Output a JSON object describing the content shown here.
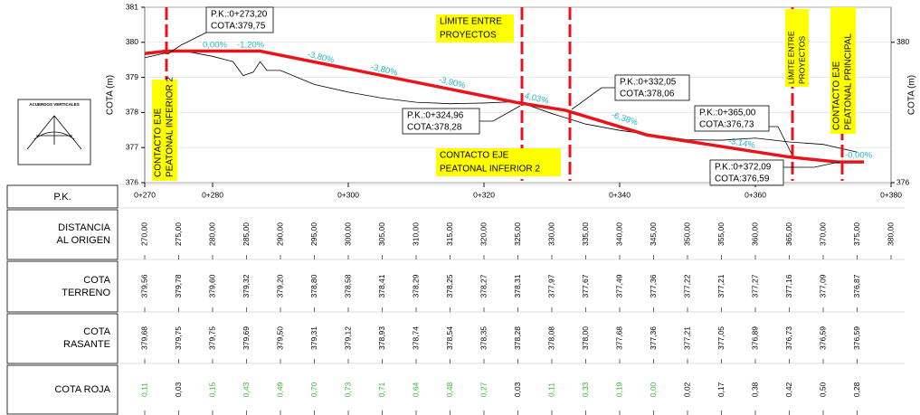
{
  "profile": {
    "y_axis_label": "COTA (m)",
    "ylim": [
      376,
      381
    ],
    "yticks": [
      376,
      377,
      378,
      379,
      380,
      381
    ],
    "right_yticks": [
      380,
      376
    ],
    "xlim": [
      270,
      380
    ],
    "xticks": [
      {
        "value": 270,
        "label": "0+270"
      },
      {
        "value": 280,
        "label": "0+280"
      },
      {
        "value": 300,
        "label": "0+300"
      },
      {
        "value": 320,
        "label": "0+320"
      },
      {
        "value": 340,
        "label": "0+340"
      },
      {
        "value": 360,
        "label": "0+360"
      },
      {
        "value": 380,
        "label": "0+380"
      }
    ],
    "terrain": {
      "color": "#000000",
      "x": [
        270,
        275,
        280,
        283,
        284.5,
        286,
        287,
        288,
        290,
        295,
        300,
        305,
        310,
        315,
        320,
        325,
        330,
        335,
        340,
        345,
        350,
        355,
        360,
        365,
        370,
        375
      ],
      "y": [
        379.56,
        379.78,
        379.6,
        379.45,
        379.05,
        379.15,
        379.45,
        379.2,
        379.2,
        378.8,
        378.58,
        378.41,
        378.29,
        378.25,
        378.27,
        378.31,
        377.97,
        377.67,
        377.49,
        377.36,
        377.22,
        377.21,
        377.27,
        377.16,
        377.09,
        376.87
      ]
    },
    "grade": {
      "color": "#e8141b",
      "x": [
        270,
        273.2,
        287,
        324.96,
        332.05,
        344,
        365,
        372.09,
        376
      ],
      "y": [
        379.68,
        379.75,
        379.75,
        378.28,
        378.06,
        377.36,
        376.73,
        376.59,
        376.59
      ]
    }
  },
  "slopes": [
    "0,00%",
    "-1,20%",
    "-3,80%",
    "-3,80%",
    "-3,90%",
    "4,03%",
    "-6,38%",
    "-3,14%",
    "-0,00%"
  ],
  "callouts": [
    {
      "pk": "P.K.:0+273,20",
      "cota": "COTA:379,75"
    },
    {
      "pk": "P.K.:0+324,96",
      "cota": "COTA:378,28"
    },
    {
      "pk": "P.K.:0+332,05",
      "cota": "COTA:378,06"
    },
    {
      "pk": "P.K.:0+365,00",
      "cota": "COTA:376,73"
    },
    {
      "pk": "P.K.:0+372,09",
      "cota": "COTA:376,59"
    }
  ],
  "markers": [
    {
      "lines": [
        "LÍMITE ENTRE",
        "PROYECTOS"
      ]
    },
    {
      "lines": [
        "CONTACTO EJE",
        "PEATONAL INFERIOR 2"
      ]
    },
    {
      "lines": [
        "CONTACTO EJE",
        "PEATONAL PRINCIPAL"
      ]
    }
  ],
  "legend_box": {
    "title": "ACUERDOS VERTICALES"
  },
  "table": {
    "headers": [
      [
        "P.K."
      ],
      [
        "DISTANCIA",
        "AL ORIGEN"
      ],
      [
        "COTA",
        "TERRENO"
      ],
      [
        "COTA",
        "RASANTE"
      ],
      [
        "COTA ROJA"
      ]
    ],
    "distancia": [
      "270,00",
      "275,00",
      "280,00",
      "285,00",
      "290,00",
      "295,00",
      "300,00",
      "305,00",
      "310,00",
      "315,00",
      "320,00",
      "325,00",
      "330,00",
      "335,00",
      "340,00",
      "345,00",
      "350,00",
      "355,00",
      "360,00",
      "365,00",
      "370,00",
      "375,00",
      "380,00"
    ],
    "terreno": [
      "379,56",
      "379,78",
      "379,60",
      "379,32",
      "379,20",
      "378,80",
      "378,58",
      "378,41",
      "378,29",
      "378,25",
      "378,27",
      "378,31",
      "377,97",
      "377,67",
      "377,49",
      "377,36",
      "377,22",
      "377,21",
      "377,27",
      "377,16",
      "377,09",
      "376,87"
    ],
    "rasante": [
      "379,68",
      "379,75",
      "379,75",
      "379,69",
      "379,50",
      "379,31",
      "379,12",
      "378,93",
      "378,74",
      "378,54",
      "378,35",
      "378,28",
      "378,08",
      "378,00",
      "377,68",
      "377,36",
      "377,21",
      "377,05",
      "376,89",
      "376,73",
      "376,59",
      "376,59"
    ],
    "roja": [
      {
        "text": "0,11",
        "color": "#2db82d"
      },
      {
        "text": "0,03",
        "color": "#000000"
      },
      {
        "text": "0,15",
        "color": "#2db82d"
      },
      {
        "text": "0,43",
        "color": "#2db82d"
      },
      {
        "text": "0,49",
        "color": "#2db82d"
      },
      {
        "text": "0,70",
        "color": "#2db82d"
      },
      {
        "text": "0,73",
        "color": "#2db82d"
      },
      {
        "text": "0,71",
        "color": "#2db82d"
      },
      {
        "text": "0,64",
        "color": "#2db82d"
      },
      {
        "text": "0,48",
        "color": "#2db82d"
      },
      {
        "text": "0,27",
        "color": "#2db82d"
      },
      {
        "text": "0,03",
        "color": "#000000"
      },
      {
        "text": "0,11",
        "color": "#2db82d"
      },
      {
        "text": "0,33",
        "color": "#2db82d"
      },
      {
        "text": "0,19",
        "color": "#2db82d"
      },
      {
        "text": "0,00",
        "color": "#2db82d"
      },
      {
        "text": "0,02",
        "color": "#000000"
      },
      {
        "text": "0,17",
        "color": "#000000"
      },
      {
        "text": "0,38",
        "color": "#000000"
      },
      {
        "text": "0,42",
        "color": "#000000"
      },
      {
        "text": "0,50",
        "color": "#000000"
      },
      {
        "text": "0,28",
        "color": "#000000"
      }
    ]
  }
}
